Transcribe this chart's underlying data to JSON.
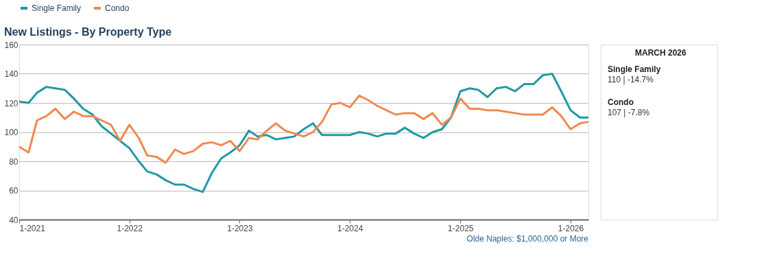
{
  "chart_data": {
    "type": "line",
    "title": "New Listings - By Property Type",
    "x": [
      "2021-01",
      "2021-02",
      "2021-03",
      "2021-04",
      "2021-05",
      "2021-06",
      "2021-07",
      "2021-08",
      "2021-09",
      "2021-10",
      "2021-11",
      "2021-12",
      "2022-01",
      "2022-02",
      "2022-03",
      "2022-04",
      "2022-05",
      "2022-06",
      "2022-07",
      "2022-08",
      "2022-09",
      "2022-10",
      "2022-11",
      "2022-12",
      "2023-01",
      "2023-02",
      "2023-03",
      "2023-04",
      "2023-05",
      "2023-06",
      "2023-07",
      "2023-08",
      "2023-09",
      "2023-10",
      "2023-11",
      "2023-12",
      "2024-01",
      "2024-02",
      "2024-03",
      "2024-04",
      "2024-05",
      "2024-06",
      "2024-07",
      "2024-08",
      "2024-09",
      "2024-10",
      "2024-11",
      "2024-12",
      "2025-01",
      "2025-02",
      "2025-03",
      "2025-04",
      "2025-05",
      "2025-06",
      "2025-07",
      "2025-08",
      "2025-09",
      "2025-10",
      "2025-11",
      "2025-12",
      "2026-01",
      "2026-02",
      "2026-03"
    ],
    "series": [
      {
        "name": "Single Family",
        "color": "#1f9aa0",
        "values": [
          121,
          120,
          127,
          131,
          130,
          129,
          123,
          116,
          112,
          104,
          99,
          94,
          89,
          80,
          73,
          71,
          67,
          64,
          64,
          61,
          59,
          72,
          82,
          86,
          91,
          101,
          97,
          98,
          95,
          96,
          97,
          102,
          106,
          98,
          98,
          98,
          98,
          100,
          99,
          97,
          99,
          99,
          103,
          99,
          96,
          100,
          102,
          110,
          128,
          130,
          129,
          124,
          130,
          131,
          128,
          133,
          133,
          139,
          140,
          128,
          115,
          110,
          110
        ]
      },
      {
        "name": "Condo",
        "color": "#f0894f",
        "values": [
          90,
          86,
          108,
          111,
          116,
          109,
          114,
          111,
          111,
          108,
          105,
          94,
          105,
          96,
          84,
          83,
          79,
          88,
          85,
          87,
          92,
          93,
          91,
          94,
          87,
          96,
          95,
          101,
          106,
          101,
          99,
          97,
          100,
          107,
          119,
          120,
          117,
          125,
          122,
          118,
          115,
          112,
          113,
          113,
          109,
          113,
          105,
          110,
          123,
          116,
          116,
          115,
          115,
          114,
          113,
          112,
          112,
          112,
          117,
          111,
          102,
          106,
          107
        ]
      }
    ],
    "xlim": [
      "2021-01",
      "2026-03"
    ],
    "xticks": [
      {
        "value": "2021-01",
        "label": "1-2021"
      },
      {
        "value": "2022-01",
        "label": "1-2022"
      },
      {
        "value": "2023-01",
        "label": "1-2023"
      },
      {
        "value": "2024-01",
        "label": "1-2024"
      },
      {
        "value": "2025-01",
        "label": "1-2025"
      },
      {
        "value": "2026-01",
        "label": "1-2026"
      }
    ],
    "ylim": [
      40,
      160
    ],
    "yticks": [
      40,
      60,
      80,
      100,
      120,
      140,
      160
    ],
    "grid": "y",
    "legend": "top",
    "marker": "none",
    "line_style": "solid",
    "annotations": [
      "Olde Naples: $1,000,000 or More",
      "MARCH 2026",
      "Single Family",
      "110 | -14.7%",
      "Condo",
      "107 | -7.8%"
    ]
  }
}
